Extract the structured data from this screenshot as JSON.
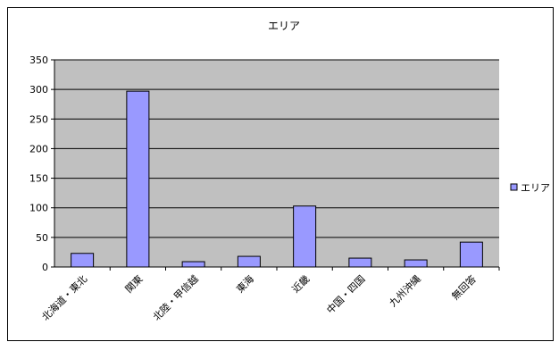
{
  "chart_data": {
    "type": "bar",
    "title": "エリア",
    "categories": [
      "北海道・東北",
      "関東",
      "北陸・甲信越",
      "東海",
      "近畿",
      "中国・四国",
      "九州沖縄",
      "無回答"
    ],
    "series": [
      {
        "name": "エリア",
        "values": [
          23,
          297,
          9,
          18,
          103,
          15,
          12,
          42
        ]
      }
    ],
    "ylim": [
      0,
      350
    ],
    "yticks": [
      0,
      50,
      100,
      150,
      200,
      250,
      300,
      350
    ],
    "grid": true,
    "legend": "right",
    "colors": {
      "bar_fill": "#9999ff",
      "bar_stroke": "#000000",
      "plot_background": "#c0c0c0",
      "gridline": "#000000"
    }
  }
}
